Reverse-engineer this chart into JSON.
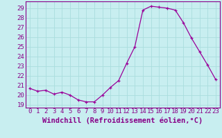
{
  "hours": [
    0,
    1,
    2,
    3,
    4,
    5,
    6,
    7,
    8,
    9,
    10,
    11,
    12,
    13,
    14,
    15,
    16,
    17,
    18,
    19,
    20,
    21,
    22,
    23
  ],
  "values": [
    20.7,
    20.4,
    20.5,
    20.1,
    20.3,
    20.0,
    19.5,
    19.3,
    19.3,
    20.0,
    20.8,
    21.5,
    23.3,
    25.0,
    28.8,
    29.2,
    29.1,
    29.0,
    28.8,
    27.5,
    25.9,
    24.5,
    23.1,
    21.6
  ],
  "line_color": "#990099",
  "marker": "+",
  "bg_color": "#c8eef0",
  "grid_color": "#aadddd",
  "xlabel": "Windchill (Refroidissement éolien,°C)",
  "ylabel_ticks": [
    19,
    20,
    21,
    22,
    23,
    24,
    25,
    26,
    27,
    28,
    29
  ],
  "ylim": [
    18.7,
    29.7
  ],
  "xlim": [
    -0.5,
    23.5
  ],
  "xlabel_fontsize": 7.5,
  "tick_fontsize": 6.5,
  "label_color": "#880088"
}
